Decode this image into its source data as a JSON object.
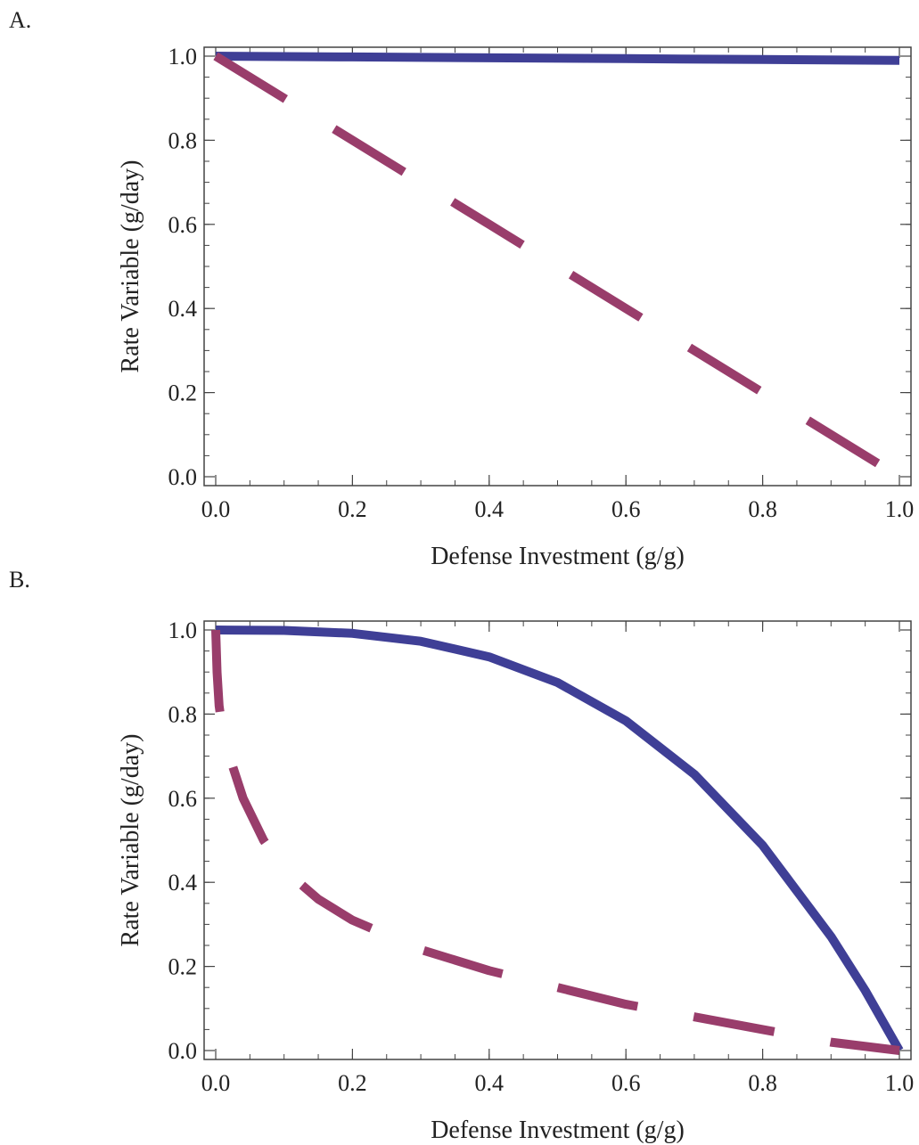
{
  "panels": [
    {
      "letter": "A."
    },
    {
      "letter": "B."
    }
  ],
  "colors": {
    "series_solid": "#3F3F96",
    "series_dashed": "#993D6B",
    "axis": "#444444"
  },
  "chart_data": [
    {
      "type": "line",
      "panel": "A.",
      "title": "",
      "xlabel": "Defense Investment (g/g)",
      "ylabel": "Rate Variable (g/day)",
      "xlim": [
        0.0,
        1.0
      ],
      "ylim": [
        0.0,
        1.0
      ],
      "xticks": [
        "0.0",
        "0.2",
        "0.4",
        "0.6",
        "0.8",
        "1.0"
      ],
      "yticks": [
        "0.0",
        "0.2",
        "0.4",
        "0.6",
        "0.8",
        "1.0"
      ],
      "grid": false,
      "series": [
        {
          "style": "solid",
          "x": [
            0.0,
            0.2,
            0.4,
            0.6,
            0.8,
            1.0
          ],
          "y": [
            1.0,
            0.998,
            0.996,
            0.994,
            0.992,
            0.99
          ]
        },
        {
          "style": "dashed",
          "x": [
            0.0,
            0.2,
            0.4,
            0.6,
            0.8,
            1.0
          ],
          "y": [
            1.0,
            0.8,
            0.6,
            0.4,
            0.2,
            0.0
          ]
        }
      ]
    },
    {
      "type": "line",
      "panel": "B.",
      "title": "",
      "xlabel": "Defense Investment (g/g)",
      "ylabel": "Rate Variable (g/day)",
      "xlim": [
        0.0,
        1.0
      ],
      "ylim": [
        0.0,
        1.0
      ],
      "xticks": [
        "0.0",
        "0.2",
        "0.4",
        "0.6",
        "0.8",
        "1.0"
      ],
      "yticks": [
        "0.0",
        "0.2",
        "0.4",
        "0.6",
        "0.8",
        "1.0"
      ],
      "grid": false,
      "series": [
        {
          "style": "solid",
          "x": [
            0.0,
            0.1,
            0.2,
            0.3,
            0.4,
            0.5,
            0.6,
            0.7,
            0.8,
            0.9,
            0.95,
            1.0
          ],
          "y": [
            1.0,
            0.999,
            0.992,
            0.973,
            0.936,
            0.875,
            0.784,
            0.657,
            0.488,
            0.271,
            0.143,
            0.0
          ]
        },
        {
          "style": "dashed",
          "x": [
            0.0,
            0.002,
            0.005,
            0.01,
            0.02,
            0.04,
            0.07,
            0.1,
            0.15,
            0.2,
            0.3,
            0.4,
            0.5,
            0.6,
            0.7,
            0.8,
            0.9,
            1.0
          ],
          "y": [
            1.0,
            0.9,
            0.82,
            0.76,
            0.7,
            0.6,
            0.5,
            0.43,
            0.36,
            0.31,
            0.24,
            0.19,
            0.15,
            0.11,
            0.08,
            0.05,
            0.02,
            0.0
          ]
        }
      ]
    }
  ]
}
